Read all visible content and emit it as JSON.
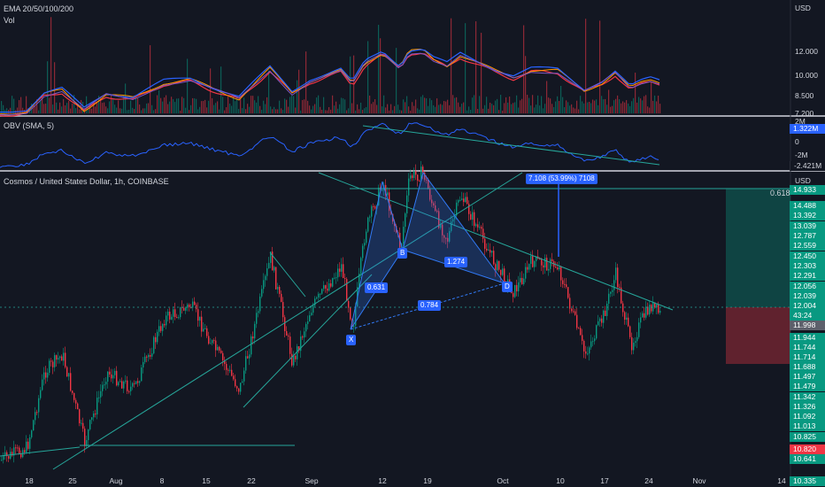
{
  "panes": {
    "ema": {
      "title": "EMA 20/50/100/200",
      "vol": "Vol",
      "currency": "USD",
      "scale": [
        "12.000",
        "10.000",
        "8.500",
        "7.200"
      ]
    },
    "obv": {
      "title": "OBV (SMA, 5)",
      "scale_top": "2M",
      "scale_mid": "0",
      "scale_low": "-2M",
      "value_badge": "1.322M",
      "value_badge2": "-2.421M"
    },
    "main": {
      "title": "Cosmos / United States Dollar, 1h, COINBASE",
      "currency": "USD"
    }
  },
  "price_scale": [
    "14.488",
    "13.392",
    "13.039",
    "12.787",
    "12.559",
    "12.450",
    "12.303",
    "12.291",
    "12.056",
    "12.039",
    "11.944",
    "11.744",
    "11.714",
    "11.688",
    "11.497",
    "11.479",
    "11.342",
    "11.326",
    "11.092",
    "11.013",
    "10.825",
    "10.641"
  ],
  "price_badges": {
    "top": "14.933",
    "current": "12.004",
    "countdown": "43:24",
    "last": "11.998",
    "low": "10.820",
    "bottom": "10.335"
  },
  "annotations": {
    "fib": "0.618",
    "measure": "7.108 (53.99%) 7108",
    "x": "X",
    "b": "B",
    "d": "D",
    "r1": "0.631",
    "r2": "1.274",
    "r3": "0.784"
  },
  "time_axis": [
    "18",
    "25",
    "Aug",
    "8",
    "15",
    "22",
    "Sep",
    "12",
    "19",
    "Oct",
    "10",
    "17",
    "24",
    "Nov",
    "14"
  ],
  "colors": {
    "up": "#089981",
    "down": "#f23645",
    "obv": "#2962ff",
    "pattern": "#3179f5",
    "trend": "#26a69a",
    "ema_red": "#f23645",
    "ema_blue": "#2962ff"
  }
}
